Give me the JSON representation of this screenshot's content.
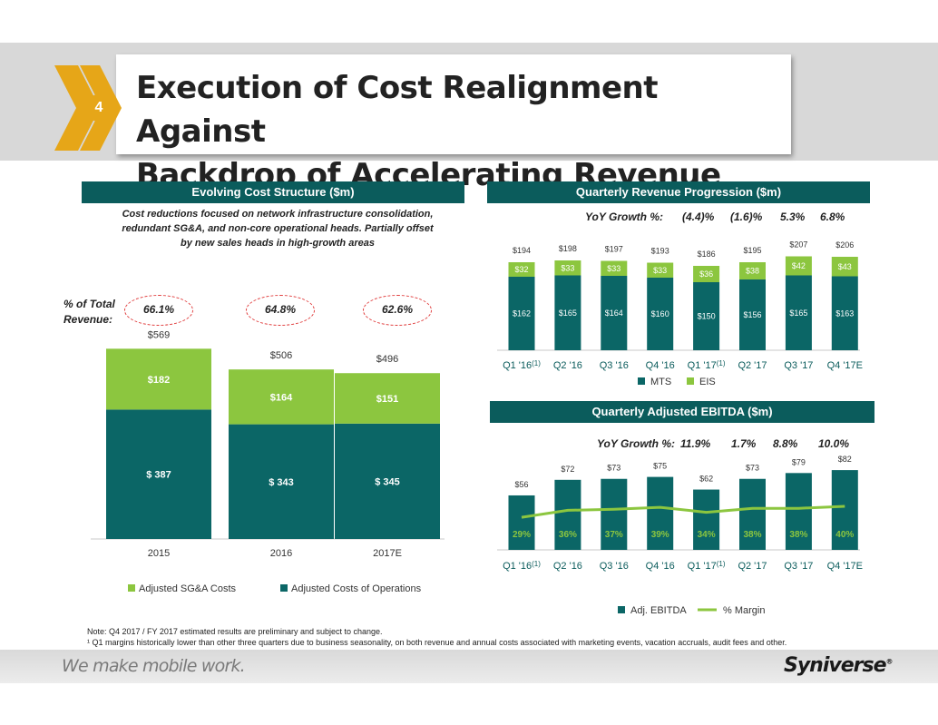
{
  "header": {
    "title_line1": "Execution of Cost Realignment Against",
    "title_line2": "Backdrop of Accelerating Revenue",
    "section_number": "4",
    "chevron_icon": "double-chevron-icon",
    "chevron_color": "#e6a618"
  },
  "cost_panel": {
    "title": "Evolving Cost Structure ($m)",
    "subtitle_line1": "Cost reductions focused on network infrastructure consolidation,",
    "subtitle_line2": "redundant SG&A, and non-core operational heads. Partially offset",
    "subtitle_line3": "by new sales heads in high-growth areas",
    "pct_label_line1": "% of Total",
    "pct_label_line2": "Revenue:",
    "pct_values": [
      "66.1%",
      "64.8%",
      "62.6%"
    ]
  },
  "revenue_panel": {
    "title": "Quarterly Revenue Progression ($m)",
    "growth_label": "YoY Growth %:",
    "growth_values": [
      "(4.4)%",
      "(1.6)%",
      "5.3%",
      "6.8%"
    ]
  },
  "ebitda_panel": {
    "title": "Quarterly Adjusted EBITDA ($m)",
    "growth_label": "YoY Growth %:",
    "growth_values": [
      "11.9%",
      "1.7%",
      "8.8%",
      "10.0%"
    ]
  },
  "colors": {
    "teal": "#0b6666",
    "green": "#8cc63f",
    "panel_title": "#0b5c5c"
  },
  "chart_data": [
    {
      "type": "bar",
      "stacked": true,
      "categories": [
        "2015",
        "2016",
        "2017E"
      ],
      "series": [
        {
          "name": "Adjusted Costs of Operations",
          "values": [
            387,
            343,
            345
          ],
          "labels": [
            "$ 387",
            "$ 343",
            "$ 345"
          ]
        },
        {
          "name": "Adjusted SG&A Costs",
          "values": [
            182,
            164,
            151
          ],
          "labels": [
            "$182",
            "$164",
            "$151"
          ]
        }
      ],
      "totals": [
        "$569",
        "$506",
        "$496"
      ],
      "legend": [
        "Adjusted SG&A Costs",
        "Adjusted Costs of Operations"
      ],
      "legend_position": "bottom",
      "ylim": [
        0,
        600
      ]
    },
    {
      "type": "bar",
      "stacked": true,
      "categories": [
        "Q1 '16",
        "Q2 '16",
        "Q3 '16",
        "Q4 '16",
        "Q1 '17",
        "Q2 '17",
        "Q3 '17",
        "Q4 '17E"
      ],
      "category_footnotes": [
        "(1)",
        "",
        "",
        "",
        "(1)",
        "",
        "",
        ""
      ],
      "series": [
        {
          "name": "MTS",
          "values": [
            162,
            165,
            164,
            160,
            150,
            156,
            165,
            163
          ],
          "labels": [
            "$162",
            "$165",
            "$164",
            "$160",
            "$150",
            "$156",
            "$165",
            "$163"
          ]
        },
        {
          "name": "EIS",
          "values": [
            32,
            33,
            33,
            33,
            36,
            38,
            42,
            43
          ],
          "labels": [
            "$32",
            "$33",
            "$33",
            "$33",
            "$36",
            "$38",
            "$42",
            "$43"
          ]
        }
      ],
      "totals": [
        "$194",
        "$198",
        "$197",
        "$193",
        "$186",
        "$195",
        "$207",
        "$206"
      ],
      "legend": [
        "MTS",
        "EIS"
      ],
      "legend_position": "bottom",
      "ylim": [
        0,
        215
      ]
    },
    {
      "type": "bar",
      "categories": [
        "Q1 '16",
        "Q2 '16",
        "Q3 '16",
        "Q4 '16",
        "Q1 '17",
        "Q2 '17",
        "Q3 '17",
        "Q4 '17E"
      ],
      "category_footnotes": [
        "(1)",
        "",
        "",
        "",
        "(1)",
        "",
        "",
        ""
      ],
      "series": [
        {
          "name": "Adj. EBITDA",
          "values": [
            56,
            72,
            73,
            75,
            62,
            73,
            79,
            82
          ],
          "labels": [
            "$56",
            "$72",
            "$73",
            "$75",
            "$62",
            "$73",
            "$79",
            "$82"
          ]
        },
        {
          "name": "% Margin",
          "type": "line",
          "values": [
            29,
            36,
            37,
            39,
            34,
            38,
            38,
            40
          ],
          "labels": [
            "29%",
            "36%",
            "37%",
            "39%",
            "34%",
            "38%",
            "38%",
            "40%"
          ]
        }
      ],
      "legend": [
        "Adj. EBITDA",
        "% Margin"
      ],
      "legend_position": "bottom",
      "ylim": [
        0,
        90
      ]
    }
  ],
  "footer": {
    "note1": "Note: Q4 2017 / FY 2017 estimated results are preliminary and subject to change.",
    "note2": "¹ Q1 margins historically lower than other three quarters due to business seasonality, on both revenue and annual costs associated with marketing events, vacation accruals, audit fees and other.",
    "tagline": "We make mobile work.",
    "logo_text": "Syniverse",
    "logo_mark": "®"
  }
}
